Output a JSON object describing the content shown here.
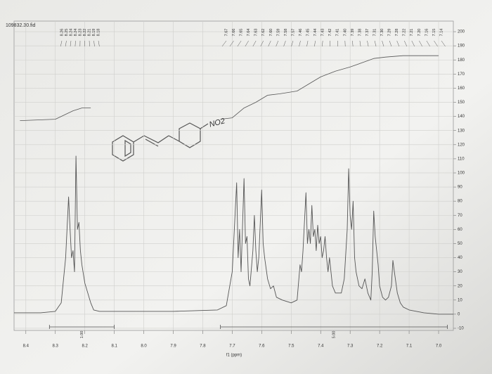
{
  "chart_data": {
    "type": "line",
    "title": "109832.30.fid",
    "xlabel": "f1 (ppm)",
    "annotation": "NO2",
    "xlim": [
      8.44,
      6.95
    ],
    "ylim": [
      -11.5,
      207.5
    ],
    "xticks": [
      8.4,
      8.3,
      8.2,
      8.1,
      {
        "value": 8.0,
        "label": "8.0"
      },
      7.9,
      7.8,
      7.7,
      7.6,
      7.5,
      7.4,
      7.3,
      7.2,
      7.1,
      {
        "value": 7.0,
        "label": "7.0"
      }
    ],
    "yticks": [
      200,
      190,
      180,
      170,
      160,
      150,
      140,
      130,
      120,
      110,
      100,
      90,
      80,
      70,
      60,
      50,
      40,
      30,
      20,
      10,
      0,
      -10
    ],
    "grid": true,
    "color": "#555555",
    "x": [
      8.44,
      8.35,
      8.3,
      8.28,
      8.265,
      8.255,
      8.25,
      8.245,
      8.24,
      8.235,
      8.23,
      8.225,
      8.22,
      8.215,
      8.21,
      8.2,
      8.19,
      8.18,
      8.17,
      8.15,
      8.1,
      7.9,
      7.75,
      7.72,
      7.7,
      7.685,
      7.68,
      7.675,
      7.67,
      7.66,
      7.655,
      7.65,
      7.645,
      7.64,
      7.63,
      7.625,
      7.62,
      7.615,
      7.61,
      7.6,
      7.595,
      7.59,
      7.58,
      7.57,
      7.56,
      7.55,
      7.53,
      7.5,
      7.48,
      7.47,
      7.465,
      7.46,
      7.45,
      7.445,
      7.44,
      7.435,
      7.43,
      7.425,
      7.42,
      7.415,
      7.41,
      7.405,
      7.4,
      7.395,
      7.39,
      7.385,
      7.38,
      7.375,
      7.37,
      7.36,
      7.35,
      7.33,
      7.32,
      7.31,
      7.305,
      7.3,
      7.295,
      7.29,
      7.285,
      7.28,
      7.27,
      7.26,
      7.25,
      7.245,
      7.24,
      7.23,
      7.225,
      7.22,
      7.215,
      7.21,
      7.205,
      7.2,
      7.19,
      7.18,
      7.17,
      7.16,
      7.155,
      7.15,
      7.14,
      7.13,
      7.12,
      7.1,
      7.05,
      7.0,
      6.95
    ],
    "values": [
      1,
      1,
      2,
      8,
      40,
      83,
      60,
      40,
      45,
      30,
      112,
      60,
      65,
      45,
      35,
      22,
      15,
      8,
      3,
      2,
      2,
      2,
      3,
      6,
      30,
      93,
      40,
      60,
      30,
      96,
      50,
      55,
      25,
      20,
      45,
      70,
      45,
      30,
      40,
      88,
      50,
      40,
      25,
      18,
      20,
      12,
      10,
      8,
      10,
      35,
      30,
      45,
      86,
      50,
      60,
      50,
      77,
      55,
      60,
      45,
      63,
      50,
      55,
      40,
      45,
      55,
      40,
      30,
      40,
      20,
      15,
      15,
      25,
      60,
      103,
      70,
      60,
      80,
      40,
      30,
      20,
      18,
      25,
      20,
      15,
      10,
      30,
      73,
      55,
      45,
      35,
      20,
      12,
      10,
      12,
      20,
      38,
      30,
      15,
      8,
      5,
      3,
      1,
      0,
      0
    ],
    "integrals": [
      {
        "x": [
          8.42,
          8.3,
          8.27,
          8.24,
          8.21,
          8.18
        ],
        "values": [
          137,
          138,
          141,
          144,
          146,
          146
        ]
      },
      {
        "x": [
          7.74,
          7.7,
          7.66,
          7.62,
          7.58,
          7.54,
          7.48,
          7.44,
          7.4,
          7.35,
          7.3,
          7.26,
          7.22,
          7.18,
          7.12,
          7.0
        ],
        "values": [
          138,
          139,
          146,
          150,
          155,
          156,
          158,
          163,
          168,
          172,
          175,
          178,
          181,
          182,
          183,
          183
        ]
      }
    ],
    "regions": [
      {
        "from": 8.32,
        "to": 8.1,
        "label": "1.00"
      },
      {
        "from": 7.74,
        "to": 6.97,
        "label": "5.00"
      }
    ],
    "peak_labels": [
      [
        "8.26",
        "8.25",
        "8.24",
        "8.24",
        "8.23",
        "8.22",
        "8.21",
        "8.19",
        "8.18"
      ],
      [
        "7.67",
        "7.66",
        "7.65",
        "7.64",
        "7.63",
        "7.62",
        "7.60",
        "7.59",
        "7.58",
        "7.57",
        "7.46",
        "7.45",
        "7.44",
        "7.43",
        "7.42",
        "7.41",
        "7.40",
        "7.39",
        "7.38",
        "7.37",
        "7.31",
        "7.30",
        "7.29",
        "7.28",
        "7.22",
        "7.21",
        "7.20",
        "7.16",
        "7.15",
        "7.14"
      ]
    ]
  }
}
